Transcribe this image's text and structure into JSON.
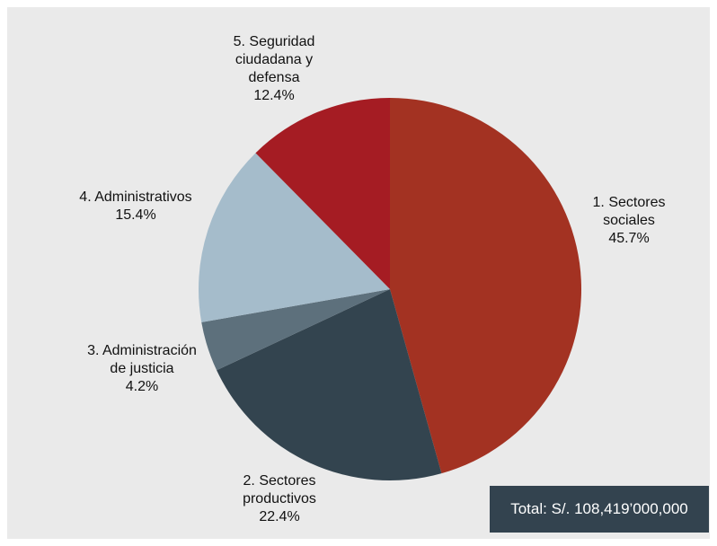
{
  "chart_data": {
    "type": "pie",
    "slices": [
      {
        "label_lines": [
          "1. Sectores",
          "sociales"
        ],
        "value_text": "45.7%",
        "value": 45.7,
        "color": "#a33222"
      },
      {
        "label_lines": [
          "2. Sectores",
          "productivos"
        ],
        "value_text": "22.4%",
        "value": 22.4,
        "color": "#33444f"
      },
      {
        "label_lines": [
          "3. Administración",
          "de justicia"
        ],
        "value_text": "4.2%",
        "value": 4.2,
        "color": "#5d707c"
      },
      {
        "label_lines": [
          "4. Administrativos"
        ],
        "value_text": "15.4%",
        "value": 15.4,
        "color": "#a5bccb"
      },
      {
        "label_lines": [
          "5. Seguridad",
          "ciudadana  y",
          "defensa"
        ],
        "value_text": "12.4%",
        "value": 12.4,
        "color": "#a51c23"
      }
    ],
    "start_angle": "12 o'clock",
    "direction": "clockwise"
  },
  "total_label": "Total: S/. 108,419’000,000",
  "colors": {
    "background": "#eaeaea",
    "total_box": "#33434f",
    "total_text": "#ffffff"
  }
}
